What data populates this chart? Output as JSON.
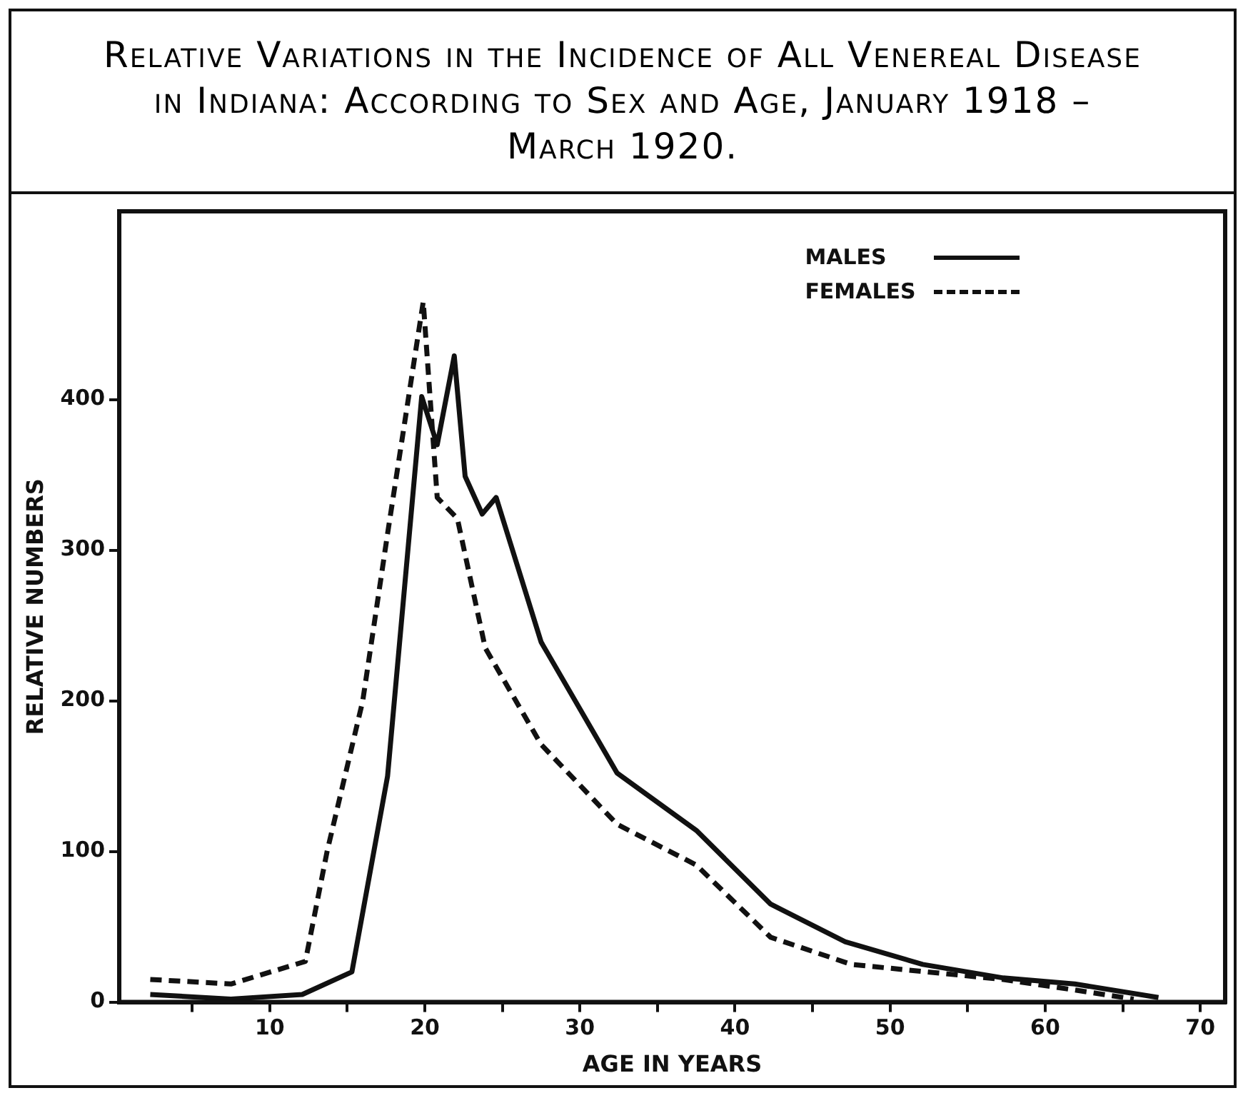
{
  "chart_data": {
    "type": "line",
    "title": "Relative Variations in the Incidence of All Venereal Disease in Indiana: According to Sex and Age, January 1918 – March 1920.",
    "xlabel": "AGE IN YEARS",
    "ylabel": "RELATIVE NUMBERS",
    "xlim": [
      0.3,
      71.6
    ],
    "xticks": [
      {
        "value": 5,
        "label": null
      },
      10,
      {
        "value": 15,
        "label": null
      },
      20,
      {
        "value": 25,
        "label": null
      },
      30,
      {
        "value": 35,
        "label": null
      },
      40,
      {
        "value": 45,
        "label": null
      },
      50,
      {
        "value": 55,
        "label": null
      },
      60,
      {
        "value": 65,
        "label": null
      },
      70
    ],
    "ylim": [
      0,
      525
    ],
    "yticks": [
      0,
      100,
      200,
      300,
      400
    ],
    "grid": false,
    "legend": "top right",
    "marker": "none",
    "series": [
      {
        "name": "MALES",
        "color": "#111111",
        "line_style": "solid",
        "x": [
          2.3,
          7.5,
          12.1,
          15.3,
          17.6,
          19.8,
          20.8,
          21.9,
          22.6,
          23.7,
          24.6,
          27.5,
          32.4,
          37.5,
          42.3,
          47.1,
          52.1,
          57.3,
          61.9,
          67.3
        ],
        "values": [
          5,
          2,
          5,
          20,
          150,
          402,
          370,
          429,
          349,
          324,
          335,
          239,
          152,
          114,
          65,
          40,
          25,
          16,
          12,
          3
        ]
      },
      {
        "name": "FEMALES",
        "color": "#111111",
        "line_style": "dashed",
        "x": [
          2.3,
          7.5,
          12.3,
          13.7,
          16.0,
          17.6,
          19.9,
          20.8,
          22.1,
          23.9,
          27.5,
          32.4,
          37.5,
          42.3,
          47.5,
          57.3,
          61.9,
          65.7
        ],
        "values": [
          15,
          12,
          27,
          100,
          200,
          311,
          465,
          335,
          321,
          235,
          171,
          118,
          91,
          43,
          25,
          15,
          8,
          2
        ]
      }
    ]
  }
}
